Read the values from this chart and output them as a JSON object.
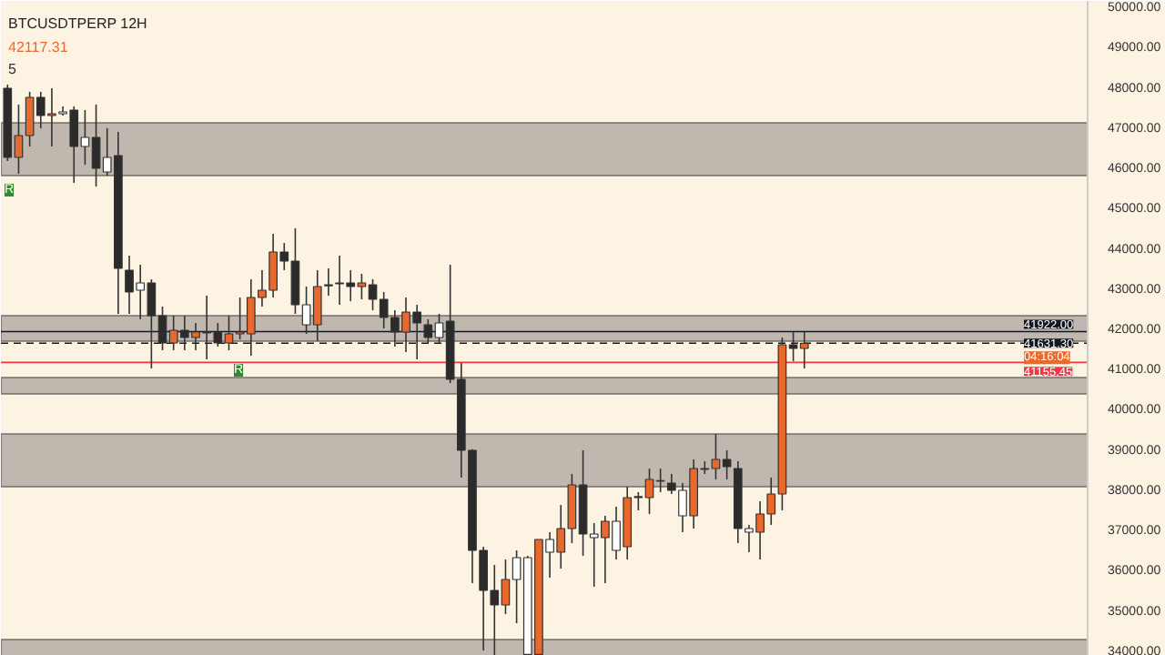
{
  "chart_data": {
    "type": "candlestick",
    "title": "BTCUSDTPERP 12H",
    "categories": [
      null,
      null,
      null,
      null,
      null,
      null,
      null,
      null,
      null,
      null,
      null,
      null,
      null,
      null,
      null,
      null,
      null,
      null,
      null,
      null,
      null,
      null,
      null,
      null,
      null,
      null,
      null,
      null,
      null,
      null,
      null,
      null,
      null,
      null,
      null,
      null,
      null,
      null,
      null,
      null,
      null,
      null,
      null,
      null,
      null,
      null,
      null,
      null,
      null,
      null,
      null,
      null,
      null,
      null,
      null,
      null,
      null,
      null,
      null,
      null,
      null,
      null,
      null,
      null,
      null,
      null,
      null,
      null,
      null,
      null,
      null,
      null,
      null,
      null,
      null,
      null,
      null,
      null,
      null,
      null,
      null,
      null,
      null,
      null,
      null,
      null,
      null,
      null,
      null,
      null,
      null,
      null,
      null,
      null,
      null,
      null,
      null,
      null
    ],
    "ohlc": [
      [
        47966,
        48057,
        46158,
        46249
      ],
      [
        46249,
        47560,
        45842,
        46791
      ],
      [
        46791,
        47876,
        46520,
        47740
      ],
      [
        47740,
        47876,
        46972,
        47288
      ],
      [
        47288,
        47966,
        46520,
        47334
      ],
      [
        47334,
        47514,
        47288,
        47379
      ],
      [
        47424,
        47514,
        45616,
        46520
      ],
      [
        46520,
        47424,
        46067,
        46746
      ],
      [
        46746,
        47560,
        45526,
        45978
      ],
      [
        45887,
        46972,
        45797,
        46249
      ],
      [
        46294,
        46882,
        42362,
        43492
      ],
      [
        43446,
        43808,
        42362,
        42904
      ],
      [
        42949,
        43582,
        42226,
        43130
      ],
      [
        43130,
        43220,
        41006,
        42316
      ],
      [
        42316,
        42542,
        41458,
        41638
      ],
      [
        41638,
        42316,
        41458,
        41955
      ],
      [
        41955,
        42316,
        41458,
        41774
      ],
      [
        41774,
        42136,
        41458,
        41910
      ],
      [
        41910,
        42814,
        41232,
        41890
      ],
      [
        41910,
        42136,
        41548,
        41638
      ],
      [
        41638,
        42316,
        41458,
        41864
      ],
      [
        41864,
        42768,
        41729,
        41910
      ],
      [
        41864,
        43220,
        41322,
        42768
      ],
      [
        42768,
        43446,
        42542,
        42949
      ],
      [
        42949,
        44350,
        42768,
        43898
      ],
      [
        43898,
        44124,
        43446,
        43672
      ],
      [
        43672,
        44486,
        42362,
        42588
      ],
      [
        42090,
        43040,
        41864,
        42588
      ],
      [
        42090,
        43446,
        41684,
        43040
      ],
      [
        43085,
        43491,
        42814,
        43060
      ],
      [
        43110,
        43808,
        42588,
        43130
      ],
      [
        43130,
        43446,
        42678,
        43040
      ],
      [
        43040,
        43356,
        42723,
        43130
      ],
      [
        43085,
        43220,
        42452,
        42723
      ],
      [
        42723,
        42904,
        42000,
        42271
      ],
      [
        42271,
        42452,
        41548,
        41910
      ],
      [
        41910,
        42768,
        41412,
        42407
      ],
      [
        42407,
        42588,
        41232,
        42136
      ],
      [
        42090,
        42226,
        41638,
        41774
      ],
      [
        41774,
        42362,
        41638,
        42136
      ],
      [
        42181,
        43582,
        40644,
        40734
      ],
      [
        40734,
        41141,
        38294,
        38972
      ],
      [
        38972,
        39000,
        35672,
        36486
      ],
      [
        36486,
        36576,
        34000,
        35491
      ],
      [
        35491,
        36124,
        33864,
        35130
      ],
      [
        35130,
        36260,
        34904,
        35762
      ],
      [
        35762,
        36486,
        34678,
        36305
      ],
      [
        33900,
        36350,
        33870,
        36305
      ],
      [
        33900,
        36757,
        33870,
        36757
      ],
      [
        36440,
        36938,
        35808,
        36757
      ],
      [
        36440,
        37616,
        36034,
        37028
      ],
      [
        37028,
        38384,
        36666,
        38113
      ],
      [
        38113,
        38972,
        36350,
        36892
      ],
      [
        36802,
        37164,
        35582,
        36892
      ],
      [
        36802,
        37344,
        35672,
        37209
      ],
      [
        36486,
        37570,
        36260,
        37209
      ],
      [
        36576,
        38068,
        36260,
        37796
      ],
      [
        37796,
        37932,
        37480,
        37820
      ],
      [
        37796,
        38520,
        37390,
        38248
      ],
      [
        38203,
        38520,
        37932,
        38220
      ],
      [
        38158,
        38384,
        37887,
        37977
      ],
      [
        37344,
        38158,
        36938,
        37977
      ],
      [
        37344,
        38746,
        37028,
        38520
      ],
      [
        38520,
        38700,
        38384,
        38500
      ],
      [
        38520,
        39379,
        38248,
        38746
      ],
      [
        38746,
        38972,
        38248,
        38565
      ],
      [
        38520,
        38700,
        36666,
        37028
      ],
      [
        36938,
        37118,
        36440,
        37028
      ],
      [
        36938,
        37706,
        36260,
        37390
      ],
      [
        37390,
        38294,
        37118,
        37887
      ],
      [
        37887,
        41773,
        37480,
        41593
      ],
      [
        41593,
        41910,
        41186,
        41503
      ],
      [
        41503,
        41910,
        41006,
        41631.3
      ],
      null,
      null,
      null,
      null,
      null,
      null,
      null,
      null,
      null,
      null,
      null,
      null,
      null,
      null,
      null,
      null,
      null,
      null,
      null,
      null,
      null,
      null,
      null,
      null,
      null
    ],
    "colors": [
      "#2b2b2b",
      "#e8692b",
      "#e8692b",
      "#2b2b2b",
      "#e8692b",
      "#ffffff",
      "#2b2b2b",
      "#ffffff",
      "#2b2b2b",
      "#ffffff",
      "#2b2b2b",
      "#2b2b2b",
      "#ffffff",
      "#2b2b2b",
      "#2b2b2b",
      "#e8692b",
      "#2b2b2b",
      "#e8692b",
      "#2b2b2b",
      "#2b2b2b",
      "#e8692b",
      "#e8692b",
      "#e8692b",
      "#e8692b",
      "#e8692b",
      "#2b2b2b",
      "#2b2b2b",
      "#ffffff",
      "#e8692b",
      "#2b2b2b",
      "#e8692b",
      "#2b2b2b",
      "#e8692b",
      "#2b2b2b",
      "#2b2b2b",
      "#2b2b2b",
      "#e8692b",
      "#2b2b2b",
      "#2b2b2b",
      "#ffffff",
      "#2b2b2b",
      "#2b2b2b",
      "#2b2b2b",
      "#2b2b2b",
      "#2b2b2b",
      "#e8692b",
      "#ffffff",
      "#ffffff",
      "#e8692b",
      "#ffffff",
      "#e8692b",
      "#e8692b",
      "#2b2b2b",
      "#ffffff",
      "#e8692b",
      "#ffffff",
      "#e8692b",
      "#e8692b",
      "#e8692b",
      "#e8692b",
      "#2b2b2b",
      "#ffffff",
      "#e8692b",
      "#2b2b2b",
      "#e8692b",
      "#2b2b2b",
      "#2b2b2b",
      "#ffffff",
      "#e8692b",
      "#e8692b",
      "#e8692b",
      "#2b2b2b",
      "#e8692b",
      null,
      null,
      null,
      null,
      null,
      null,
      null,
      null,
      null,
      null,
      null,
      null,
      null,
      null,
      null,
      null,
      null,
      null,
      null,
      null,
      null,
      null,
      null,
      null,
      null
    ],
    "ylim": [
      33864,
      50136
    ],
    "yticks": [
      {
        "value": 34000,
        "label": "34000.00"
      },
      {
        "value": 35000,
        "label": "35000.00"
      },
      {
        "value": 36000,
        "label": "36000.00"
      },
      {
        "value": 37000,
        "label": "37000.00"
      },
      {
        "value": 38000,
        "label": "38000.00"
      },
      {
        "value": 39000,
        "label": "39000.00"
      },
      {
        "value": 40000,
        "label": "40000.00"
      },
      {
        "value": 41000,
        "label": "41000.00"
      },
      {
        "value": 42000,
        "label": "42000.00"
      },
      {
        "value": 43000,
        "label": "43000.00"
      },
      {
        "value": 44000,
        "label": "44000.00"
      },
      {
        "value": 45000,
        "label": "45000.00"
      },
      {
        "value": 46000,
        "label": "46000.00"
      },
      {
        "value": 47000,
        "label": "47000.00"
      },
      {
        "value": 48000,
        "label": "48000.00"
      },
      {
        "value": 49000,
        "label": "49000.00"
      },
      {
        "value": 50000,
        "label": "50000.00"
      }
    ],
    "tick_labels": "y",
    "grid": false,
    "bands": [
      {
        "axis": "y",
        "from": 45797,
        "to": 47107,
        "color": "#b5ada5"
      },
      {
        "axis": "y",
        "from": 41684,
        "to": 42316,
        "color": "#b5ada5"
      },
      {
        "axis": "y",
        "from": 40373,
        "to": 40780,
        "color": "#b5ada5"
      },
      {
        "axis": "y",
        "from": 38068,
        "to": 39379,
        "color": "#b5ada5"
      },
      {
        "axis": "y",
        "from": 33864,
        "to": 34271,
        "color": "#b5ada5"
      }
    ],
    "ref_lines": [
      {
        "axis": "y",
        "value": 41922,
        "label": "41922.00",
        "color": "#131722",
        "line_style": "solid"
      },
      {
        "axis": "y",
        "value": 41631.3,
        "label": "41631.30",
        "color": "#131722",
        "line_style": "dashed"
      },
      {
        "axis": "y",
        "value": 41155.45,
        "label": "41155.45",
        "color": "#f23645",
        "line_style": "solid"
      }
    ],
    "annotations": [
      "42117.31",
      "5",
      "04:16:04",
      {
        "text": "R",
        "y": 45436
      },
      {
        "text": "R",
        "y": 40960
      }
    ]
  }
}
